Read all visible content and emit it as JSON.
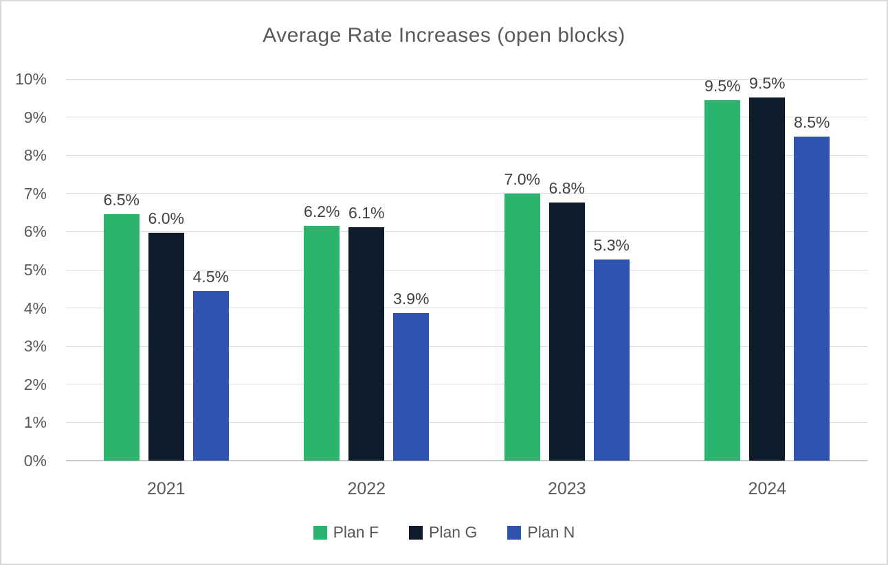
{
  "chart_data": {
    "type": "bar",
    "title": "Average Rate Increases (open blocks)",
    "categories": [
      "2021",
      "2022",
      "2023",
      "2024"
    ],
    "series": [
      {
        "name": "Plan F",
        "color": "#2bb46e",
        "values": [
          6.5,
          6.2,
          7.0,
          9.5
        ],
        "labels": [
          "6.5%",
          "6.2%",
          "7.0%",
          "9.5%"
        ],
        "plotted": [
          6.45,
          6.15,
          7.0,
          9.45
        ]
      },
      {
        "name": "Plan G",
        "color": "#0d1b2b",
        "values": [
          6.0,
          6.1,
          6.8,
          9.5
        ],
        "labels": [
          "6.0%",
          "6.1%",
          "6.8%",
          "9.5%"
        ],
        "plotted": [
          5.98,
          6.11,
          6.77,
          9.51
        ]
      },
      {
        "name": "Plan N",
        "color": "#2f53ae",
        "values": [
          4.5,
          3.9,
          5.3,
          8.5
        ],
        "labels": [
          "4.5%",
          "3.9%",
          "5.3%",
          "8.5%"
        ],
        "plotted": [
          4.45,
          3.86,
          5.27,
          8.49
        ]
      }
    ],
    "ylim": [
      0,
      10
    ],
    "y_ticks": [
      "0%",
      "1%",
      "2%",
      "3%",
      "4%",
      "5%",
      "6%",
      "7%",
      "8%",
      "9%",
      "10%"
    ],
    "y_tick_values": [
      0,
      1,
      2,
      3,
      4,
      5,
      6,
      7,
      8,
      9,
      10
    ],
    "grid": "horizontal",
    "legend_position": "bottom",
    "colors": {
      "title_text": "#595959",
      "axis_text": "#595959",
      "data_label_text": "#404040",
      "gridline": "#dbdbdb",
      "background": "#ffffff",
      "frame_border": "#d9d9d9"
    }
  }
}
